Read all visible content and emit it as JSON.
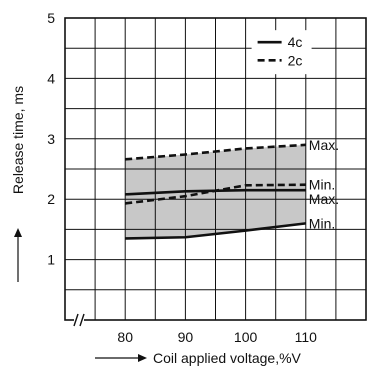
{
  "chart_data": {
    "type": "line",
    "title": "",
    "xlabel": "Coil applied voltage,%V",
    "ylabel": "Release time, ms",
    "x_ticks": [
      "80",
      "90",
      "100",
      "110"
    ],
    "y_ticks": [
      "1",
      "2",
      "3",
      "4",
      "5"
    ],
    "xlim": [
      70,
      120
    ],
    "ylim": [
      0,
      5
    ],
    "axis_break": "x",
    "grid": true,
    "legend": {
      "position": "top-right",
      "entries": [
        {
          "label": "4c",
          "style": "solid"
        },
        {
          "label": "2c",
          "style": "dashed"
        }
      ]
    },
    "shaded_band": {
      "upper": "2c Max.",
      "lower": "4c Min.",
      "color": "#c8c8c8"
    },
    "series": [
      {
        "name": "4c",
        "label": "Max.",
        "style": "solid",
        "x": [
          80,
          90,
          100,
          110
        ],
        "values": [
          2.08,
          2.13,
          2.15,
          2.15
        ]
      },
      {
        "name": "4c",
        "label": "Min.",
        "style": "solid",
        "x": [
          80,
          90,
          100,
          110
        ],
        "values": [
          1.35,
          1.37,
          1.48,
          1.6
        ]
      },
      {
        "name": "2c",
        "label": "Max.",
        "style": "dashed",
        "x": [
          80,
          90,
          100,
          110
        ],
        "values": [
          2.66,
          2.74,
          2.84,
          2.9
        ]
      },
      {
        "name": "2c",
        "label": "Min.",
        "style": "dashed",
        "x": [
          80,
          90,
          100,
          110
        ],
        "values": [
          1.93,
          2.05,
          2.23,
          2.24
        ]
      }
    ],
    "annotations": [
      "Max.",
      "Min.",
      "Max.",
      "Min."
    ]
  }
}
